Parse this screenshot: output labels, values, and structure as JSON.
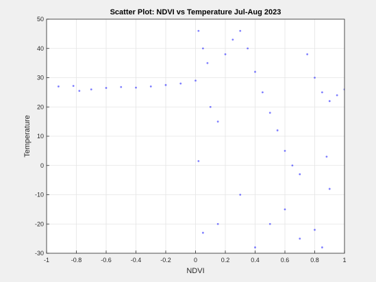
{
  "chart_data": {
    "type": "scatter",
    "title": "Scatter Plot: NDVI vs Temperature Jul-Aug 2023",
    "xlabel": "NDVI",
    "ylabel": "Temperature",
    "xlim": [
      -1,
      1
    ],
    "ylim": [
      -30,
      50
    ],
    "xticks": [
      "-1",
      "-0.8",
      "-0.6",
      "-0.4",
      "-0.2",
      "0",
      "0.2",
      "0.4",
      "0.6",
      "0.8",
      "1"
    ],
    "yticks": [
      "-30",
      "-20",
      "-10",
      "0",
      "10",
      "20",
      "30",
      "40",
      "50"
    ],
    "grid": true,
    "marker_color": "#0000ff",
    "background": "#f0f0f0",
    "series": [
      {
        "points": [
          [
            -0.92,
            27.0
          ],
          [
            -0.82,
            27.2
          ],
          [
            -0.78,
            25.5
          ],
          [
            -0.7,
            26.0
          ],
          [
            -0.6,
            26.5
          ],
          [
            -0.5,
            26.8
          ],
          [
            -0.4,
            26.6
          ],
          [
            -0.3,
            27.0
          ],
          [
            -0.2,
            27.5
          ],
          [
            -0.1,
            28.0
          ],
          [
            0.0,
            29.0
          ],
          [
            0.02,
            46.0
          ],
          [
            0.05,
            40.0
          ],
          [
            0.08,
            35.0
          ],
          [
            0.1,
            20.0
          ],
          [
            0.15,
            15.0
          ],
          [
            0.2,
            38.0
          ],
          [
            0.25,
            43.0
          ],
          [
            0.3,
            46.0
          ],
          [
            0.35,
            40.0
          ],
          [
            0.4,
            32.0
          ],
          [
            0.45,
            25.0
          ],
          [
            0.5,
            18.0
          ],
          [
            0.55,
            12.0
          ],
          [
            0.6,
            5.0
          ],
          [
            0.65,
            0.0
          ],
          [
            0.7,
            -3.0
          ],
          [
            0.75,
            38.0
          ],
          [
            0.8,
            30.0
          ],
          [
            0.85,
            25.0
          ],
          [
            0.9,
            22.0
          ],
          [
            0.95,
            24.0
          ],
          [
            1.0,
            26.0
          ],
          [
            0.3,
            -10.0
          ],
          [
            0.5,
            -20.0
          ],
          [
            0.6,
            -15.0
          ],
          [
            0.7,
            -25.0
          ],
          [
            0.8,
            -22.0
          ],
          [
            0.9,
            -8.0
          ],
          [
            0.15,
            -20.0
          ],
          [
            0.05,
            -23.0
          ],
          [
            0.4,
            -28.0
          ],
          [
            0.85,
            -28.0
          ],
          [
            0.02,
            1.5
          ],
          [
            0.88,
            3.0
          ]
        ]
      }
    ]
  }
}
